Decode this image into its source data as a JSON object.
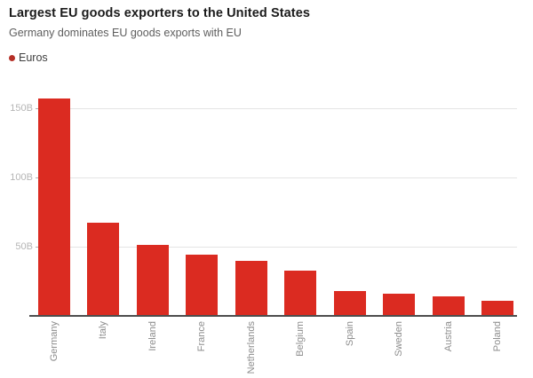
{
  "chart": {
    "title": "Largest EU goods exporters to the United States",
    "subtitle": "Germany dominates EU goods exports with EU",
    "legend_label": "Euros"
  },
  "chart_data": {
    "type": "bar",
    "title": "Largest EU goods exporters to the United States",
    "subtitle": "Germany dominates EU goods exports with EU",
    "legend_entries": [
      "Euros"
    ],
    "legend_position": "top-left",
    "categories": [
      "Germany",
      "Italy",
      "Ireland",
      "France",
      "Netherlands",
      "Belgium",
      "Spain",
      "Sweden",
      "Austria",
      "Poland"
    ],
    "values": [
      157,
      67,
      51,
      44,
      40,
      33,
      18,
      16,
      14,
      11
    ],
    "unit": "billions of euros",
    "xlabel": "",
    "ylabel": "",
    "y_ticks": [
      {
        "value": 50,
        "label": "50B"
      },
      {
        "value": 100,
        "label": "100B"
      },
      {
        "value": 150,
        "label": "150B"
      }
    ],
    "ylim": [
      0,
      165
    ],
    "grid": "horizontal",
    "x_label_rotation": -90,
    "colors": {
      "bar": "#db2b21",
      "legend_dot": "#b52f26",
      "gridline": "#e4e4e4",
      "axis_line": "#4d4d4d",
      "y_tick_text": "#b5b5b5",
      "x_tick_text": "#8d8d8d"
    }
  }
}
